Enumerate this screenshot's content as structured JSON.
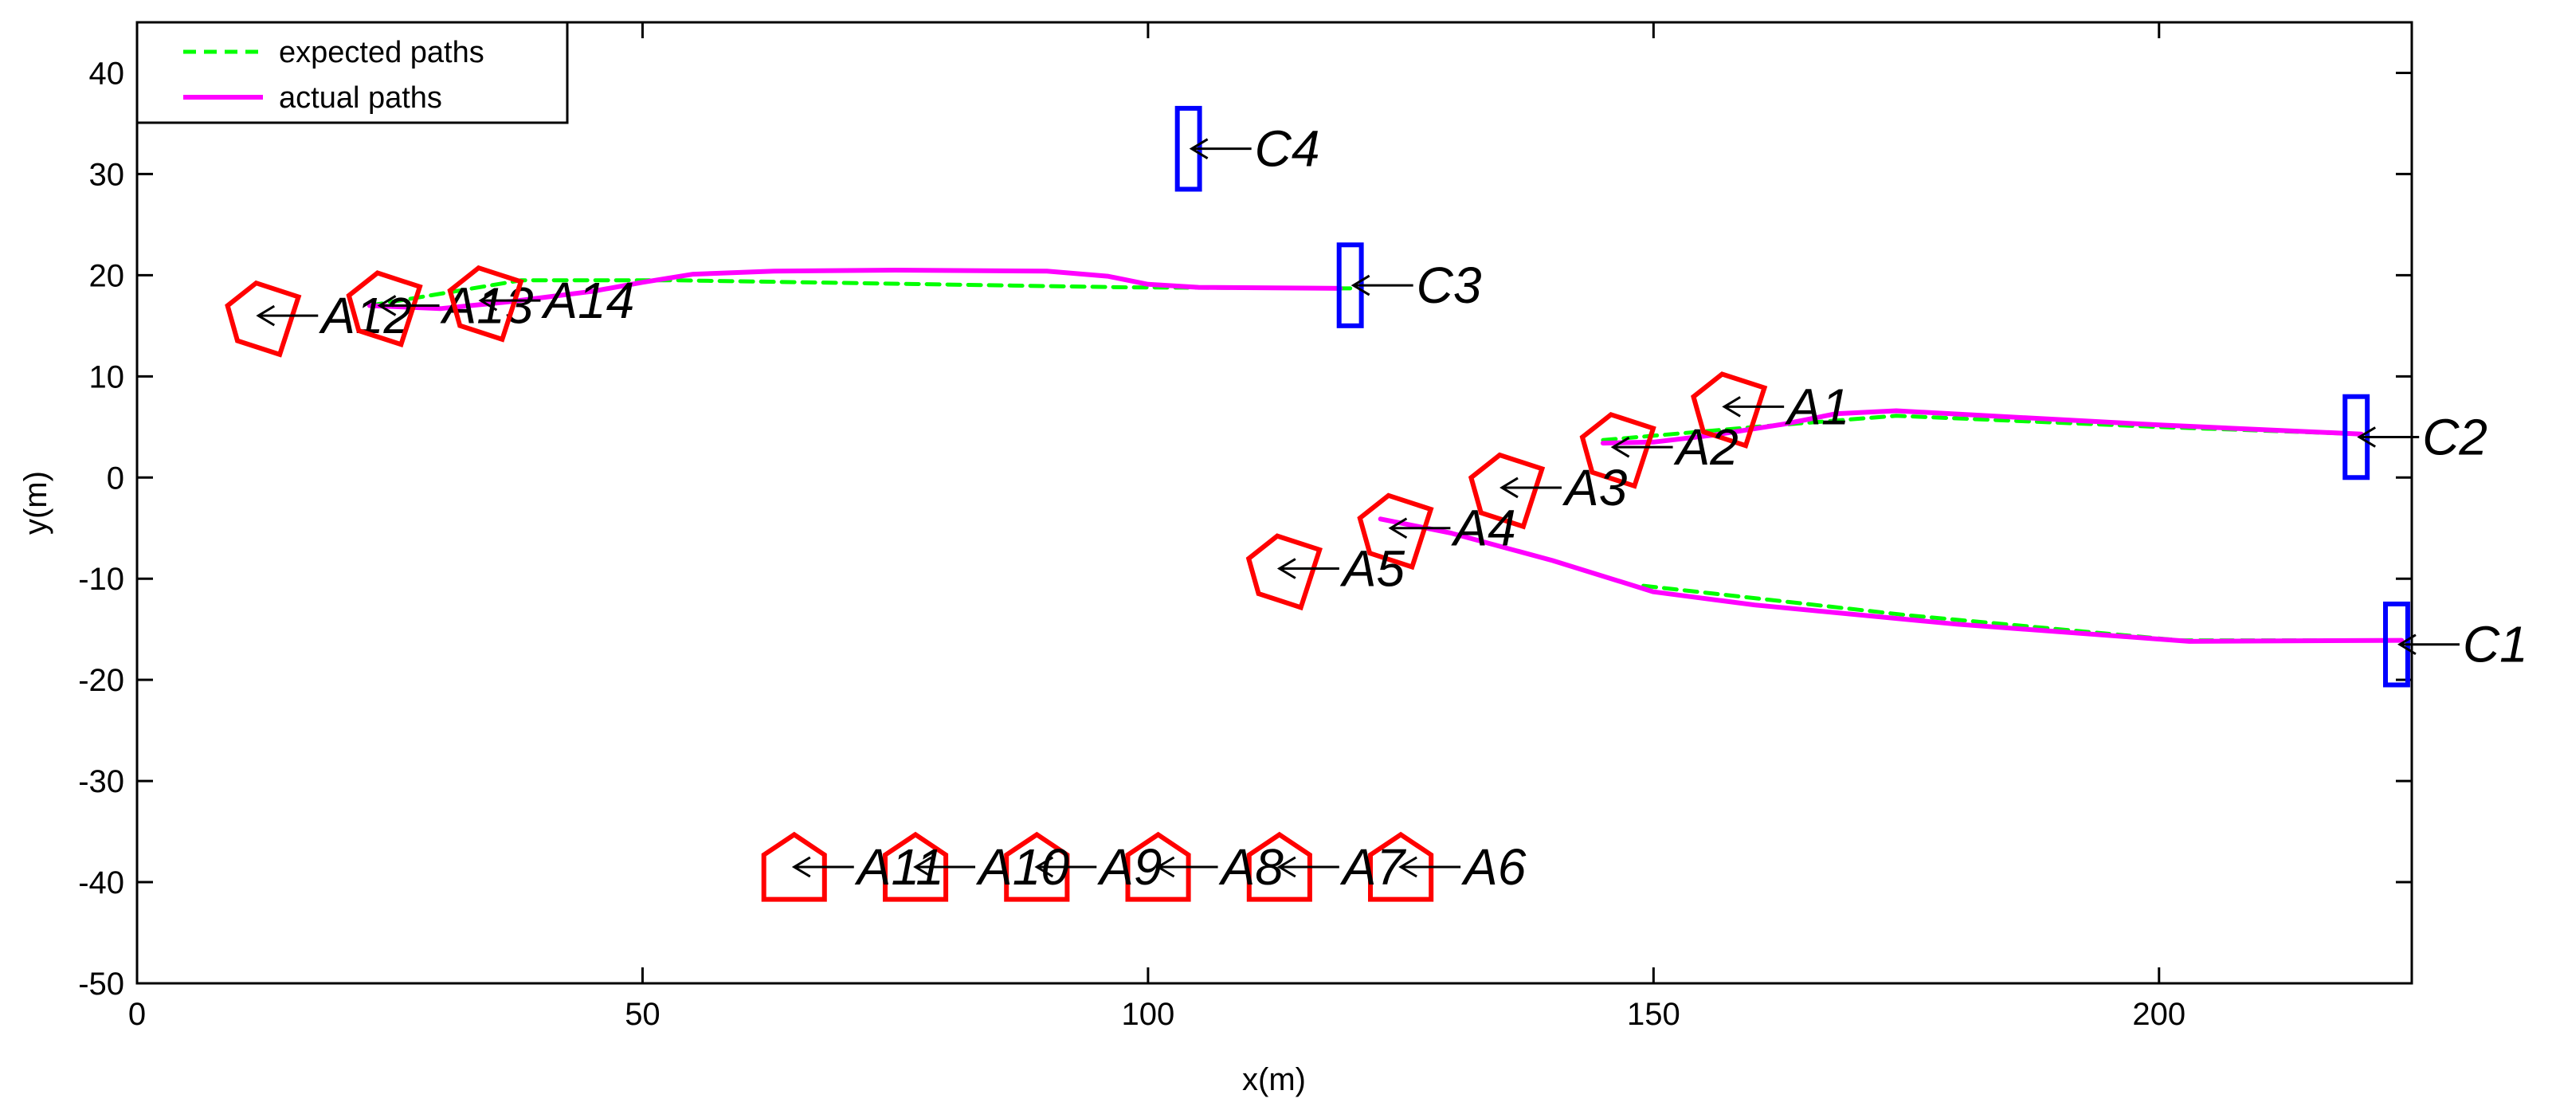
{
  "chart_data": {
    "type": "line",
    "title": "",
    "xlabel": "x(m)",
    "ylabel": "y(m)",
    "xlim": [
      0,
      225
    ],
    "ylim": [
      -50,
      45
    ],
    "xticks": [
      0,
      50,
      100,
      150,
      200
    ],
    "yticks": [
      -50,
      -40,
      -30,
      -20,
      -10,
      0,
      10,
      20,
      30,
      40
    ],
    "grid": false,
    "legend_position": "top-left",
    "legend": [
      {
        "label": "expected paths",
        "style": "dashed",
        "color": "#00ff00"
      },
      {
        "label": "actual paths",
        "style": "solid",
        "color": "#ff00ff"
      }
    ],
    "series": [
      {
        "name": "expected paths",
        "color": "#00ff00",
        "style": "dashed",
        "points": [
          [
            23,
            17
          ],
          [
            38,
            19.5
          ],
          [
            53,
            19.5
          ],
          [
            98,
            18.8
          ],
          [
            120,
            18.7
          ]
        ]
      },
      {
        "name": "expected paths",
        "color": "#00ff00",
        "style": "dashed",
        "points": [
          [
            145,
            3.7
          ],
          [
            160,
            5
          ],
          [
            174,
            6.1
          ],
          [
            200,
            5
          ],
          [
            220,
            4.3
          ]
        ]
      },
      {
        "name": "expected paths",
        "color": "#00ff00",
        "style": "dashed",
        "points": [
          [
            149,
            -10.7
          ],
          [
            175,
            -13.6
          ],
          [
            202,
            -16.1
          ],
          [
            224,
            -16.1
          ]
        ]
      },
      {
        "name": "actual paths",
        "color": "#ff00ff",
        "style": "solid",
        "points": [
          [
            23,
            17
          ],
          [
            30,
            16.7
          ],
          [
            37,
            17.4
          ],
          [
            45,
            18.4
          ],
          [
            50,
            19.3
          ],
          [
            55,
            20.1
          ],
          [
            63,
            20.4
          ],
          [
            75,
            20.5
          ],
          [
            90,
            20.4
          ],
          [
            96,
            19.9
          ],
          [
            100,
            19.1
          ],
          [
            105,
            18.8
          ],
          [
            119,
            18.7
          ]
        ]
      },
      {
        "name": "actual paths",
        "color": "#ff00ff",
        "style": "solid",
        "points": [
          [
            145,
            3.4
          ],
          [
            150,
            3.5
          ],
          [
            156,
            4.2
          ],
          [
            163,
            5.3
          ],
          [
            168,
            6.3
          ],
          [
            174,
            6.6
          ],
          [
            200,
            5.2
          ],
          [
            220,
            4.3
          ]
        ]
      },
      {
        "name": "actual paths",
        "color": "#ff00ff",
        "style": "solid",
        "points": [
          [
            123,
            -4.1
          ],
          [
            130,
            -5.5
          ],
          [
            140,
            -8.2
          ],
          [
            150,
            -11.3
          ],
          [
            160,
            -12.6
          ],
          [
            180,
            -14.5
          ],
          [
            203,
            -16.2
          ],
          [
            224,
            -16.1
          ]
        ]
      }
    ],
    "agents": [
      {
        "label": "A1",
        "x": 157,
        "y": 7,
        "heading": 162,
        "color": "#ff0000"
      },
      {
        "label": "A2",
        "x": 146,
        "y": 3,
        "heading": 162,
        "color": "#ff0000"
      },
      {
        "label": "A3",
        "x": 135,
        "y": -1,
        "heading": 162,
        "color": "#ff0000"
      },
      {
        "label": "A4",
        "x": 124,
        "y": -5,
        "heading": 162,
        "color": "#ff0000"
      },
      {
        "label": "A5",
        "x": 113,
        "y": -9,
        "heading": 162,
        "color": "#ff0000"
      },
      {
        "label": "A6",
        "x": 125,
        "y": -38.5,
        "heading": 90,
        "color": "#ff0000"
      },
      {
        "label": "A7",
        "x": 113,
        "y": -38.5,
        "heading": 90,
        "color": "#ff0000"
      },
      {
        "label": "A8",
        "x": 101,
        "y": -38.5,
        "heading": 90,
        "color": "#ff0000"
      },
      {
        "label": "A9",
        "x": 89,
        "y": -38.5,
        "heading": 90,
        "color": "#ff0000"
      },
      {
        "label": "A10",
        "x": 77,
        "y": -38.5,
        "heading": 90,
        "color": "#ff0000"
      },
      {
        "label": "A11",
        "x": 65,
        "y": -38.5,
        "heading": 90,
        "color": "#ff0000"
      },
      {
        "label": "A12",
        "x": 12,
        "y": 16,
        "heading": 162,
        "color": "#ff0000"
      },
      {
        "label": "A13",
        "x": 24,
        "y": 17,
        "heading": 162,
        "color": "#ff0000"
      },
      {
        "label": "A14",
        "x": 34,
        "y": 17.5,
        "heading": 162,
        "color": "#ff0000"
      }
    ],
    "stations": [
      {
        "label": "C1",
        "x": 223.5,
        "y": -16.5,
        "color": "#0000ff"
      },
      {
        "label": "C2",
        "x": 219.5,
        "y": 4,
        "color": "#0000ff"
      },
      {
        "label": "C3",
        "x": 120,
        "y": 19,
        "color": "#0000ff"
      },
      {
        "label": "C4",
        "x": 104,
        "y": 32.5,
        "color": "#0000ff"
      }
    ]
  }
}
